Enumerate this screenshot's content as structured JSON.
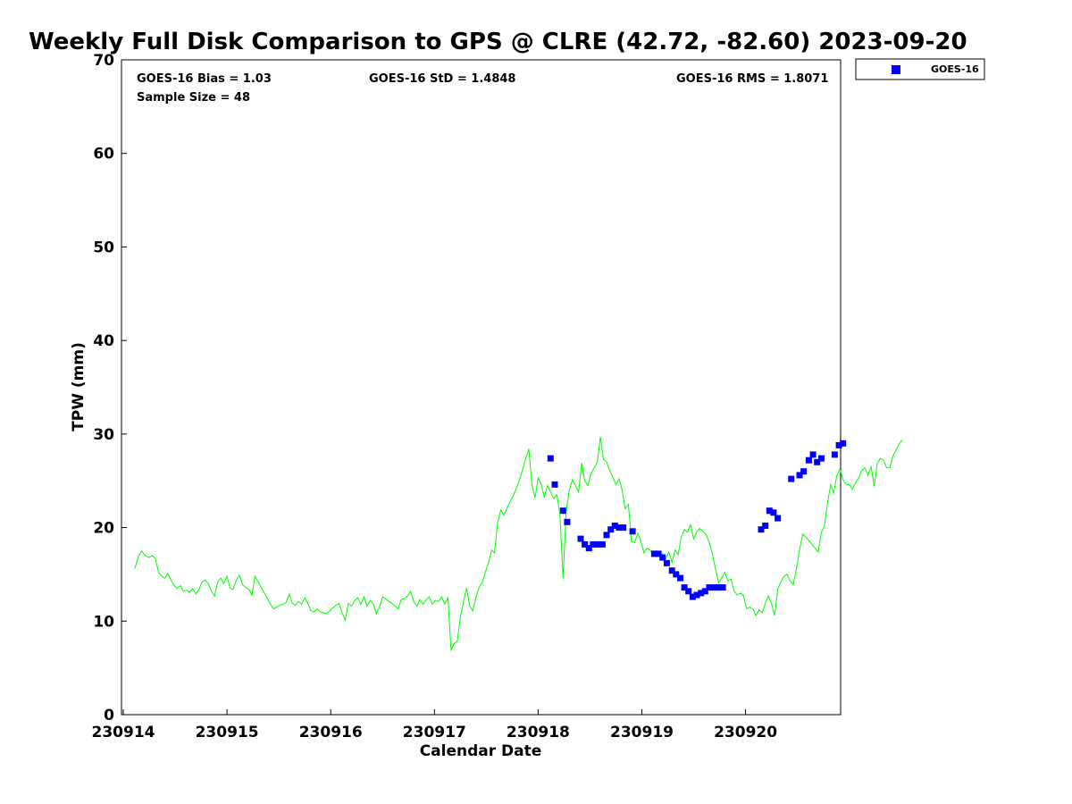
{
  "chart_data": {
    "type": "scatter",
    "title": "Weekly Full Disk Comparison to GPS @ CLRE (42.72, -82.60) 2023-09-20",
    "xlabel": "Calendar Date",
    "ylabel": "TPW (mm)",
    "xlim": [
      "230914",
      "230920 ~23:00"
    ],
    "ylim": [
      0,
      70
    ],
    "x_ticks": [
      "230914",
      "230915",
      "230916",
      "230917",
      "230918",
      "230919",
      "230920"
    ],
    "y_ticks": [
      0,
      10,
      20,
      30,
      40,
      50,
      60,
      70
    ],
    "grid": false,
    "legend_position": "top-right (outside plot)",
    "stats": {
      "bias": "GOES-16 Bias = 1.03",
      "std": "GOES-16 StD = 1.4848",
      "rms": "GOES-16 RMS = 1.8071",
      "sample": "Sample Size = 48"
    },
    "colors": {
      "gps_line": "#00ff00",
      "goes_marker": "#0000ff"
    },
    "series": [
      {
        "name": "GOES-16",
        "kind": "markers",
        "x_unit": "days since 230914 00:00",
        "points": [
          [
            4.12,
            27.4
          ],
          [
            4.16,
            24.6
          ],
          [
            4.24,
            21.8
          ],
          [
            4.28,
            20.6
          ],
          [
            4.41,
            18.8
          ],
          [
            4.45,
            18.2
          ],
          [
            4.49,
            17.8
          ],
          [
            4.53,
            18.2
          ],
          [
            4.57,
            18.2
          ],
          [
            4.62,
            18.2
          ],
          [
            4.66,
            19.2
          ],
          [
            4.7,
            19.8
          ],
          [
            4.74,
            20.2
          ],
          [
            4.78,
            20.0
          ],
          [
            4.82,
            20.0
          ],
          [
            4.91,
            19.6
          ],
          [
            5.12,
            17.2
          ],
          [
            5.16,
            17.2
          ],
          [
            5.2,
            16.8
          ],
          [
            5.24,
            16.2
          ],
          [
            5.29,
            15.4
          ],
          [
            5.33,
            15.0
          ],
          [
            5.37,
            14.6
          ],
          [
            5.41,
            13.6
          ],
          [
            5.45,
            13.2
          ],
          [
            5.49,
            12.6
          ],
          [
            5.53,
            12.8
          ],
          [
            5.57,
            13.0
          ],
          [
            5.61,
            13.2
          ],
          [
            5.65,
            13.6
          ],
          [
            5.7,
            13.6
          ],
          [
            5.74,
            13.6
          ],
          [
            5.78,
            13.6
          ],
          [
            6.15,
            19.8
          ],
          [
            6.19,
            20.2
          ],
          [
            6.23,
            21.8
          ],
          [
            6.27,
            21.6
          ],
          [
            6.31,
            21.0
          ],
          [
            6.44,
            25.2
          ],
          [
            6.52,
            25.6
          ],
          [
            6.56,
            26.0
          ],
          [
            6.61,
            27.2
          ],
          [
            6.65,
            27.8
          ],
          [
            6.69,
            27.0
          ],
          [
            6.73,
            27.4
          ],
          [
            6.86,
            27.8
          ],
          [
            6.9,
            28.8
          ],
          [
            6.94,
            29.0
          ]
        ]
      },
      {
        "kind": "line",
        "x_unit": "days since 230914 00:00",
        "points": [
          [
            0.11,
            15.6
          ],
          [
            0.15,
            17.0
          ],
          [
            0.18,
            17.5
          ],
          [
            0.21,
            17.0
          ],
          [
            0.25,
            16.8
          ],
          [
            0.28,
            17.0
          ],
          [
            0.31,
            16.7
          ],
          [
            0.34,
            15.2
          ],
          [
            0.37,
            14.8
          ],
          [
            0.4,
            14.6
          ],
          [
            0.43,
            15.1
          ],
          [
            0.46,
            14.4
          ],
          [
            0.49,
            13.8
          ],
          [
            0.52,
            13.5
          ],
          [
            0.55,
            13.8
          ],
          [
            0.58,
            13.2
          ],
          [
            0.61,
            13.3
          ],
          [
            0.64,
            13.1
          ],
          [
            0.67,
            13.5
          ],
          [
            0.7,
            12.9
          ],
          [
            0.73,
            13.4
          ],
          [
            0.76,
            14.2
          ],
          [
            0.79,
            14.4
          ],
          [
            0.82,
            14.0
          ],
          [
            0.85,
            13.2
          ],
          [
            0.88,
            12.7
          ],
          [
            0.91,
            14.2
          ],
          [
            0.94,
            14.6
          ],
          [
            0.97,
            14.0
          ],
          [
            1.0,
            14.8
          ],
          [
            1.03,
            13.5
          ],
          [
            1.06,
            13.4
          ],
          [
            1.09,
            14.4
          ],
          [
            1.12,
            14.9
          ],
          [
            1.15,
            13.9
          ],
          [
            1.18,
            13.6
          ],
          [
            1.21,
            13.4
          ],
          [
            1.24,
            12.8
          ],
          [
            1.27,
            14.8
          ],
          [
            1.3,
            14.2
          ],
          [
            1.33,
            13.6
          ],
          [
            1.36,
            13.0
          ],
          [
            1.39,
            12.4
          ],
          [
            1.42,
            11.8
          ],
          [
            1.45,
            11.3
          ],
          [
            1.48,
            11.5
          ],
          [
            1.51,
            11.7
          ],
          [
            1.54,
            11.8
          ],
          [
            1.57,
            12.0
          ],
          [
            1.6,
            12.9
          ],
          [
            1.63,
            11.9
          ],
          [
            1.66,
            11.7
          ],
          [
            1.69,
            12.1
          ],
          [
            1.72,
            11.8
          ],
          [
            1.75,
            12.5
          ],
          [
            1.78,
            11.9
          ],
          [
            1.81,
            11.1
          ],
          [
            1.84,
            11.0
          ],
          [
            1.87,
            11.3
          ],
          [
            1.9,
            11.0
          ],
          [
            1.93,
            10.9
          ],
          [
            1.96,
            10.8
          ],
          [
            1.99,
            11.1
          ],
          [
            2.02,
            11.4
          ],
          [
            2.05,
            11.7
          ],
          [
            2.08,
            11.9
          ],
          [
            2.11,
            10.9
          ],
          [
            2.14,
            10.1
          ],
          [
            2.17,
            11.9
          ],
          [
            2.2,
            11.6
          ],
          [
            2.23,
            12.2
          ],
          [
            2.26,
            12.5
          ],
          [
            2.29,
            11.8
          ],
          [
            2.32,
            12.6
          ],
          [
            2.35,
            11.6
          ],
          [
            2.38,
            12.2
          ],
          [
            2.41,
            11.9
          ],
          [
            2.44,
            10.8
          ],
          [
            2.47,
            11.5
          ],
          [
            2.5,
            12.6
          ],
          [
            2.53,
            12.4
          ],
          [
            2.56,
            12.1
          ],
          [
            2.59,
            11.9
          ],
          [
            2.62,
            11.6
          ],
          [
            2.65,
            11.3
          ],
          [
            2.68,
            12.3
          ],
          [
            2.71,
            12.4
          ],
          [
            2.74,
            12.7
          ],
          [
            2.77,
            13.2
          ],
          [
            2.8,
            12.1
          ],
          [
            2.83,
            11.6
          ],
          [
            2.86,
            12.3
          ],
          [
            2.89,
            11.8
          ],
          [
            2.92,
            12.3
          ],
          [
            2.95,
            12.6
          ],
          [
            2.98,
            11.8
          ],
          [
            3.01,
            12.2
          ],
          [
            3.04,
            12.1
          ],
          [
            3.07,
            12.6
          ],
          [
            3.1,
            11.8
          ],
          [
            3.13,
            12.5
          ],
          [
            3.16,
            6.9
          ],
          [
            3.19,
            7.6
          ],
          [
            3.22,
            7.8
          ],
          [
            3.25,
            10.4
          ],
          [
            3.28,
            12.1
          ],
          [
            3.31,
            13.5
          ],
          [
            3.34,
            11.6
          ],
          [
            3.37,
            11.1
          ],
          [
            3.4,
            12.5
          ],
          [
            3.43,
            13.6
          ],
          [
            3.46,
            14.1
          ],
          [
            3.49,
            15.2
          ],
          [
            3.52,
            16.2
          ],
          [
            3.55,
            17.6
          ],
          [
            3.58,
            17.3
          ],
          [
            3.61,
            20.6
          ],
          [
            3.64,
            21.9
          ],
          [
            3.67,
            21.3
          ],
          [
            3.7,
            22.1
          ],
          [
            3.73,
            22.8
          ],
          [
            3.76,
            23.4
          ],
          [
            3.79,
            24.2
          ],
          [
            3.82,
            25.1
          ],
          [
            3.85,
            26.2
          ],
          [
            3.88,
            27.4
          ],
          [
            3.91,
            28.4
          ],
          [
            3.94,
            24.6
          ],
          [
            3.97,
            23.2
          ],
          [
            4.0,
            25.3
          ],
          [
            4.03,
            24.6
          ],
          [
            4.06,
            23.2
          ],
          [
            4.09,
            24.5
          ],
          [
            4.12,
            23.8
          ],
          [
            4.15,
            23.1
          ],
          [
            4.18,
            23.5
          ],
          [
            4.21,
            21.4
          ],
          [
            4.24,
            14.6
          ],
          [
            4.27,
            21.6
          ],
          [
            4.3,
            24.0
          ],
          [
            4.33,
            25.1
          ],
          [
            4.36,
            24.5
          ],
          [
            4.39,
            23.8
          ],
          [
            4.42,
            26.9
          ],
          [
            4.45,
            25.0
          ],
          [
            4.48,
            24.5
          ],
          [
            4.51,
            25.8
          ],
          [
            4.54,
            26.4
          ],
          [
            4.57,
            27.0
          ],
          [
            4.6,
            29.7
          ],
          [
            4.63,
            27.3
          ],
          [
            4.66,
            27.0
          ],
          [
            4.69,
            26.1
          ],
          [
            4.72,
            25.4
          ],
          [
            4.75,
            24.6
          ],
          [
            4.78,
            25.2
          ],
          [
            4.81,
            24.0
          ],
          [
            4.84,
            22.0
          ],
          [
            4.87,
            22.5
          ],
          [
            4.9,
            18.5
          ],
          [
            4.93,
            18.4
          ],
          [
            4.96,
            19.4
          ],
          [
            4.99,
            18.6
          ],
          [
            5.02,
            17.3
          ],
          [
            5.05,
            17.8
          ],
          [
            5.08,
            17.6
          ],
          [
            5.11,
            17.0
          ],
          [
            5.14,
            17.4
          ],
          [
            5.17,
            17.0
          ],
          [
            5.2,
            17.2
          ],
          [
            5.23,
            16.7
          ],
          [
            5.26,
            17.4
          ],
          [
            5.29,
            16.3
          ],
          [
            5.32,
            17.6
          ],
          [
            5.35,
            17.1
          ],
          [
            5.38,
            19.0
          ],
          [
            5.41,
            19.8
          ],
          [
            5.44,
            19.5
          ],
          [
            5.47,
            20.3
          ],
          [
            5.5,
            18.8
          ],
          [
            5.53,
            19.6
          ],
          [
            5.56,
            19.9
          ],
          [
            5.59,
            19.6
          ],
          [
            5.62,
            19.2
          ],
          [
            5.65,
            18.4
          ],
          [
            5.68,
            17.2
          ],
          [
            5.71,
            15.6
          ],
          [
            5.74,
            14.1
          ],
          [
            5.77,
            14.6
          ],
          [
            5.8,
            15.2
          ],
          [
            5.83,
            14.3
          ],
          [
            5.86,
            14.5
          ],
          [
            5.89,
            13.2
          ],
          [
            5.92,
            12.8
          ],
          [
            5.95,
            13.0
          ],
          [
            5.98,
            12.7
          ],
          [
            6.01,
            11.3
          ],
          [
            6.04,
            11.5
          ],
          [
            6.07,
            11.3
          ],
          [
            6.1,
            10.6
          ],
          [
            6.13,
            11.2
          ],
          [
            6.16,
            10.9
          ],
          [
            6.19,
            11.9
          ],
          [
            6.22,
            12.7
          ],
          [
            6.25,
            11.9
          ],
          [
            6.28,
            10.6
          ],
          [
            6.31,
            13.4
          ],
          [
            6.34,
            14.2
          ],
          [
            6.37,
            14.8
          ],
          [
            6.4,
            15.0
          ],
          [
            6.43,
            14.3
          ],
          [
            6.46,
            13.9
          ],
          [
            6.49,
            15.6
          ],
          [
            6.52,
            17.6
          ],
          [
            6.55,
            19.3
          ],
          [
            6.58,
            19.0
          ],
          [
            6.61,
            18.6
          ],
          [
            6.64,
            18.2
          ],
          [
            6.67,
            17.8
          ],
          [
            6.7,
            17.4
          ],
          [
            6.73,
            19.5
          ],
          [
            6.76,
            20.1
          ],
          [
            6.79,
            22.6
          ],
          [
            6.82,
            24.6
          ],
          [
            6.85,
            23.7
          ],
          [
            6.88,
            25.6
          ],
          [
            6.91,
            26.3
          ],
          [
            6.94,
            25.1
          ],
          [
            6.97,
            24.6
          ],
          [
            7.0,
            24.6
          ],
          [
            7.03,
            24.1
          ],
          [
            7.06,
            24.8
          ],
          [
            7.09,
            25.3
          ],
          [
            7.12,
            26.1
          ],
          [
            7.15,
            26.4
          ],
          [
            7.18,
            25.6
          ],
          [
            7.21,
            26.5
          ],
          [
            7.24,
            24.4
          ],
          [
            7.27,
            26.9
          ],
          [
            7.3,
            27.4
          ],
          [
            7.33,
            27.2
          ],
          [
            7.36,
            26.4
          ],
          [
            7.39,
            26.4
          ],
          [
            7.42,
            27.6
          ],
          [
            7.45,
            28.3
          ],
          [
            7.48,
            28.9
          ],
          [
            7.51,
            29.4
          ]
        ]
      }
    ]
  }
}
